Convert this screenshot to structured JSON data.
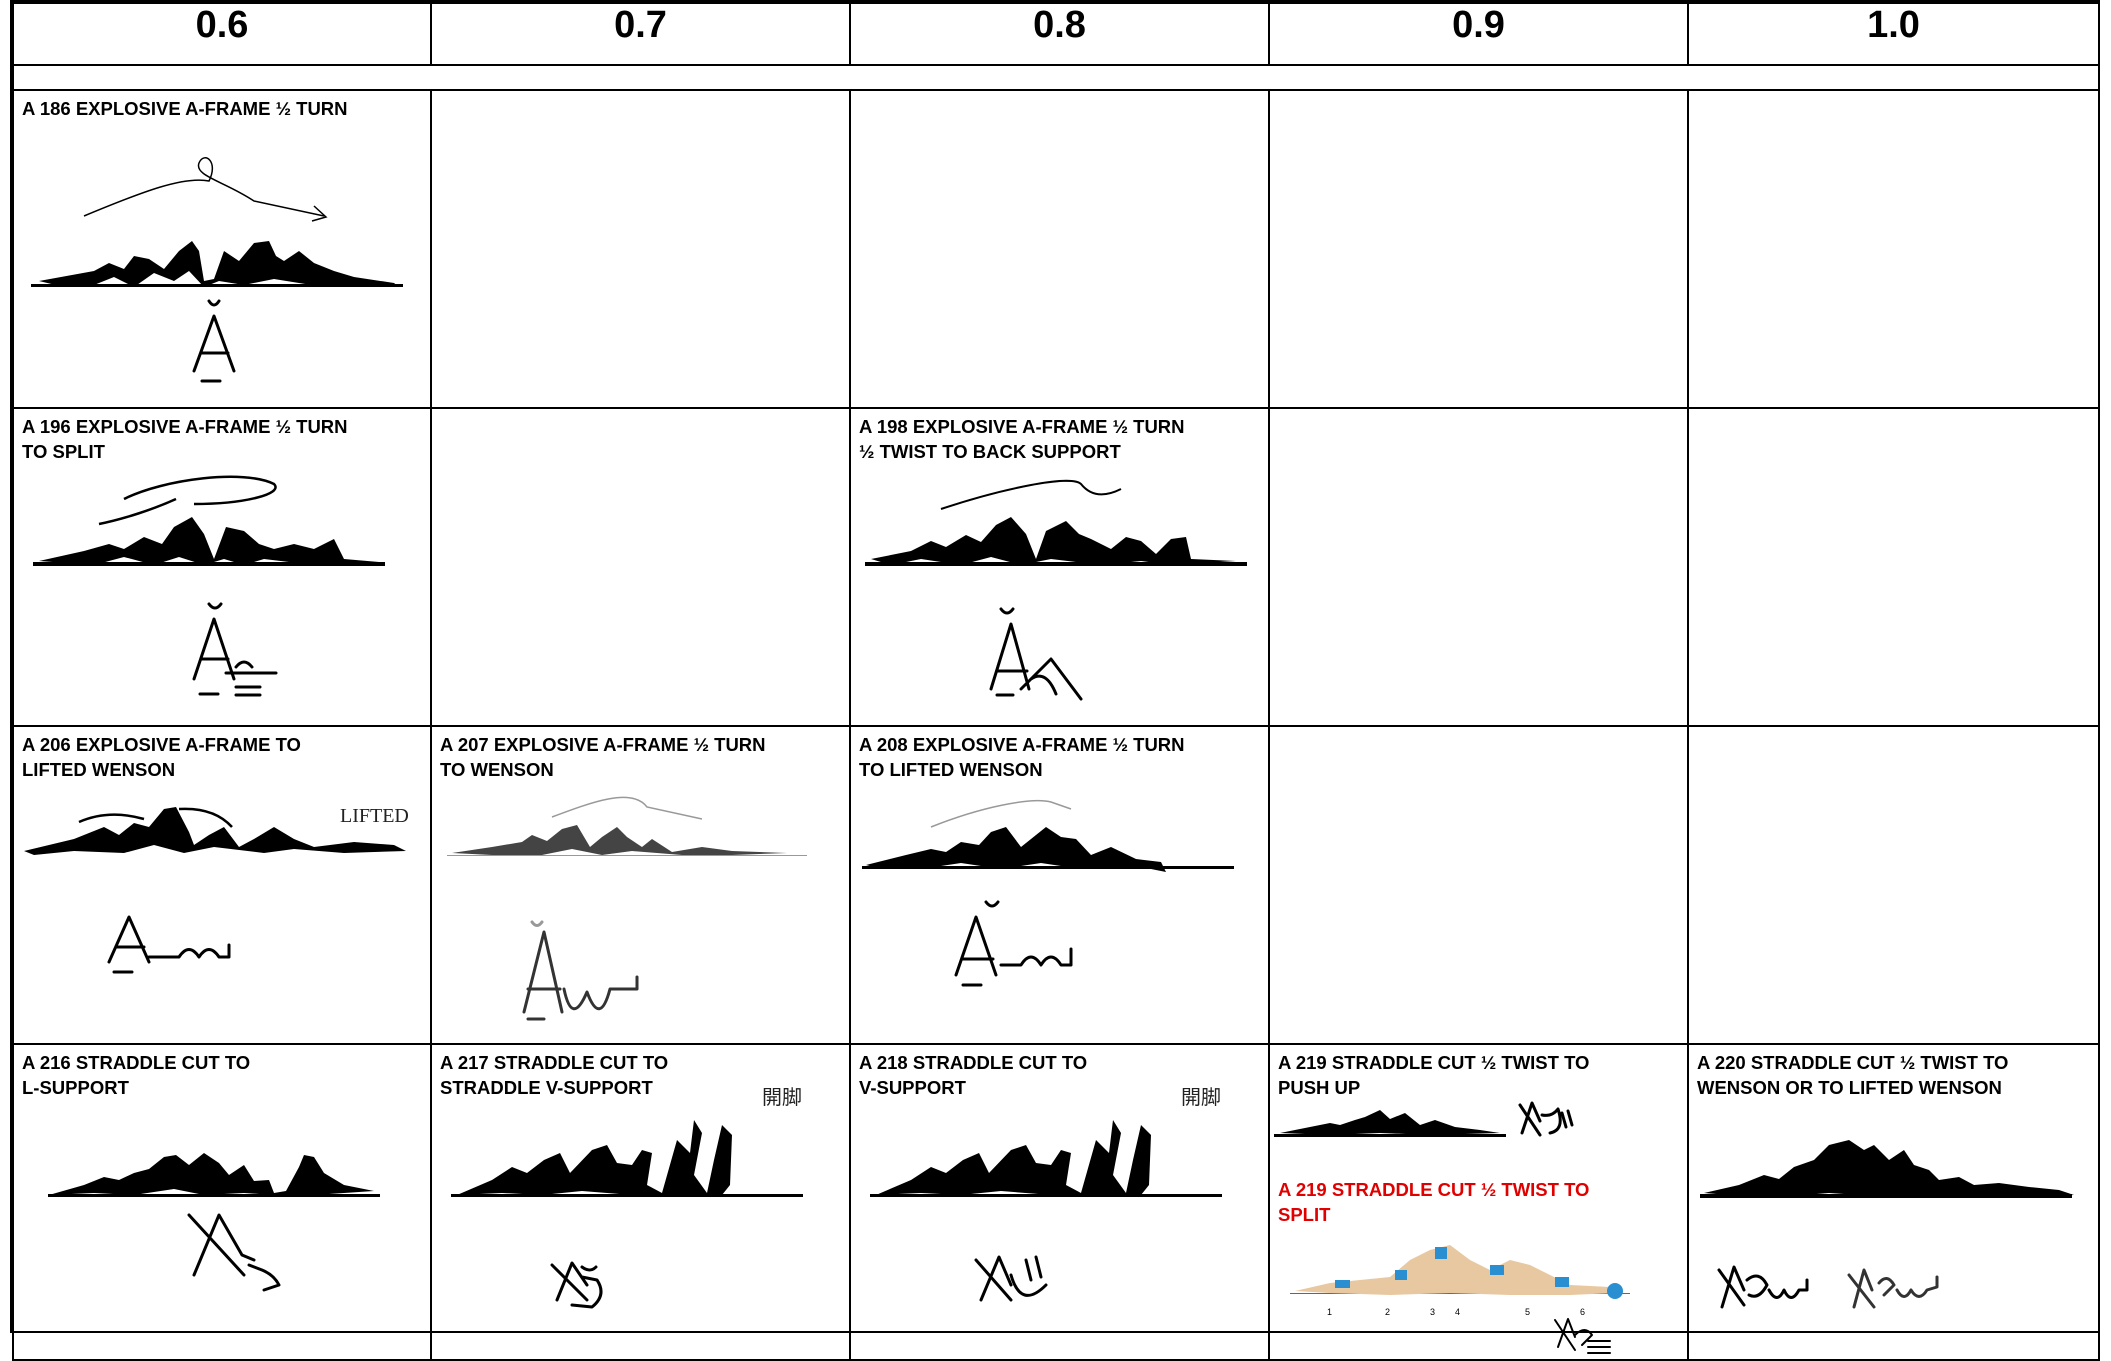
{
  "header": {
    "columns": [
      "0.6",
      "0.7",
      "0.8",
      "0.9",
      "1.0"
    ]
  },
  "rows": [
    {
      "cells": [
        {
          "title": "A 186 EXPLOSIVE A-FRAME ½ TURN"
        },
        {
          "title": ""
        },
        {
          "title": ""
        },
        {
          "title": ""
        },
        {
          "title": ""
        }
      ]
    },
    {
      "cells": [
        {
          "title": "A 196 EXPLOSIVE A-FRAME ½ TURN\nTO SPLIT"
        },
        {
          "title": ""
        },
        {
          "title": "A 198 EXPLOSIVE A-FRAME ½ TURN\n½ TWIST TO BACK SUPPORT"
        },
        {
          "title": ""
        },
        {
          "title": ""
        }
      ]
    },
    {
      "cells": [
        {
          "title": "A 206 EXPLOSIVE A-FRAME TO\nLIFTED WENSON",
          "caption": "LIFTED"
        },
        {
          "title": "A 207 EXPLOSIVE A-FRAME ½ TURN\nTO WENSON"
        },
        {
          "title": "A 208 EXPLOSIVE A-FRAME ½ TURN\nTO LIFTED WENSON"
        },
        {
          "title": ""
        },
        {
          "title": ""
        }
      ]
    },
    {
      "cells": [
        {
          "title": "A 216 STRADDLE CUT TO\nL-SUPPORT"
        },
        {
          "title": "A 217  STRADDLE CUT TO\nSTRADDLE V-SUPPORT",
          "caption": "開脚"
        },
        {
          "title": "A 218  STRADDLE CUT TO\nV-SUPPORT",
          "caption": "開脚"
        },
        {
          "title": "A 219  STRADDLE CUT ½ TWIST TO\nPUSH UP",
          "subtitle": "A 219  STRADDLE CUT ½ TWIST TO\nSPLIT",
          "sequence_numbers": [
            "1",
            "2",
            "3",
            "4",
            "5",
            "6"
          ]
        },
        {
          "title": "A 220  STRADDLE CUT ½ TWIST TO\nWENSON OR TO LIFTED WENSON"
        }
      ]
    }
  ],
  "colors": {
    "subtitle_red": "#e00000",
    "figure": "#000000"
  }
}
